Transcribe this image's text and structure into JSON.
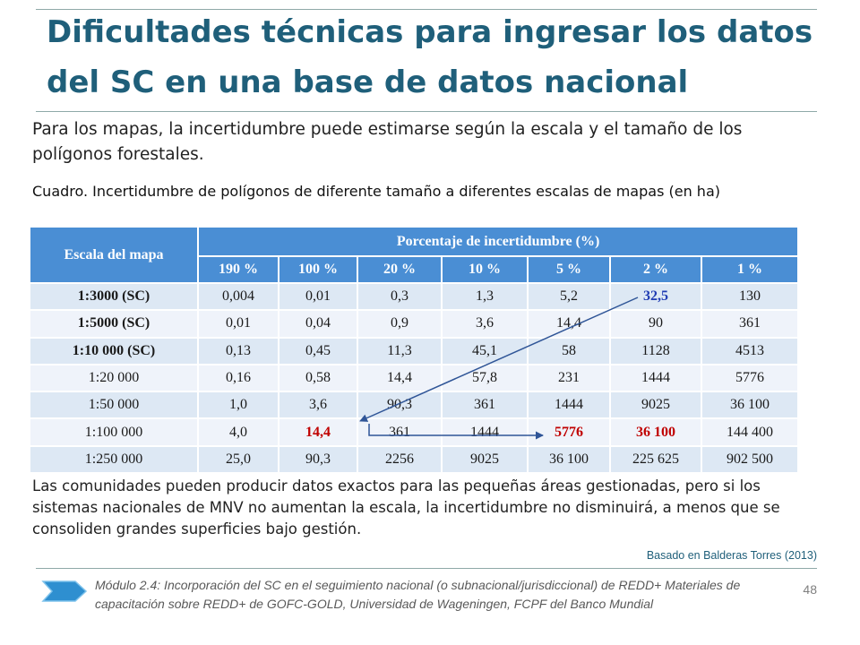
{
  "slide": {
    "title": "Dificultades técnicas para ingresar los datos del SC en una base de datos nacional",
    "intro": "Para los mapas, la incertidumbre puede estimarse según la escala y el tamaño de los polígonos forestales.",
    "caption": "Cuadro. Incertidumbre de polígonos de diferente tamaño a diferentes escalas de mapas (en ha)",
    "closing": "Las comunidades pueden producir datos exactos para las pequeñas áreas gestionadas, pero si los sistemas nacionales de MNV no aumentan la escala, la incertidumbre no disminuirá, a menos que se consoliden grandes superficies bajo gestión.",
    "source": "Basado en Balderas Torres (2013)",
    "page_number": "48",
    "footer": "Módulo 2.4: Incorporación del SC en el seguimiento nacional (o subnacional/jurisdiccional) de REDD+ Materiales de capacitación sobre REDD+ de GOFC-GOLD, Universidad de Wageningen, FCPF del Banco Mundial",
    "footer_icon": "chevron-arrow-icon"
  },
  "table": {
    "row_header": "Escala del mapa",
    "group_header": "Porcentaje de incertidumbre (%)",
    "columns": [
      "190 %",
      "100 %",
      "20 %",
      "10 %",
      "5 %",
      "2 %",
      "1 %"
    ],
    "rows": [
      {
        "scale": "1:3000 (SC)",
        "bold": true,
        "values": [
          "0,004",
          "0,01",
          "0,3",
          "1,3",
          "5,2",
          "32,5",
          "130"
        ]
      },
      {
        "scale": "1:5000 (SC)",
        "bold": true,
        "values": [
          "0,01",
          "0,04",
          "0,9",
          "3,6",
          "14,4",
          "90",
          "361"
        ]
      },
      {
        "scale": "1:10 000 (SC)",
        "bold": true,
        "values": [
          "0,13",
          "0,45",
          "11,3",
          "45,1",
          "58",
          "1128",
          "4513"
        ]
      },
      {
        "scale": "1:20 000",
        "bold": false,
        "values": [
          "0,16",
          "0,58",
          "14,4",
          "57,8",
          "231",
          "1444",
          "5776"
        ]
      },
      {
        "scale": "1:50 000",
        "bold": false,
        "values": [
          "1,0",
          "3,6",
          "90,3",
          "361",
          "1444",
          "9025",
          "36 100"
        ]
      },
      {
        "scale": "1:100 000",
        "bold": false,
        "values": [
          "4,0",
          "14,4",
          "361",
          "1444",
          "5776",
          "36 100",
          "144 400"
        ]
      },
      {
        "scale": "1:250 000",
        "bold": false,
        "values": [
          "25,0",
          "90,3",
          "2256",
          "9025",
          "36 100",
          "225 625",
          "902 500"
        ]
      }
    ],
    "highlights": {
      "blue": [
        [
          0,
          5
        ]
      ],
      "red": [
        [
          5,
          1
        ],
        [
          5,
          4
        ],
        [
          5,
          5
        ]
      ]
    },
    "colors": {
      "header_bg": "#4a8ed4",
      "row_even": "#dde8f4",
      "row_odd": "#eff3fa",
      "highlight_blue": "#1f3bb3",
      "highlight_red": "#c00000",
      "arrow": "#2f5597"
    }
  }
}
